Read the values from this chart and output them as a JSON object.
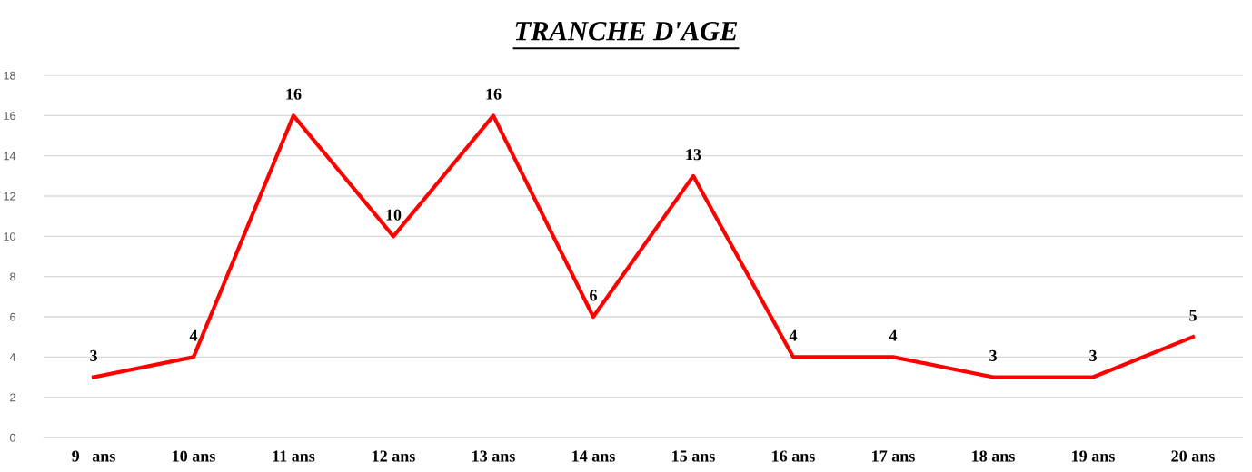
{
  "chart_data": {
    "type": "line",
    "title": "TRANCHE D'AGE",
    "categories": [
      "9   ans",
      "10 ans",
      "11 ans",
      "12 ans",
      "13 ans",
      "14 ans",
      "15 ans",
      "16 ans",
      "17 ans",
      "18 ans",
      "19 ans",
      "20 ans"
    ],
    "series": [
      {
        "color": "#ff0000",
        "values": [
          3,
          4,
          16,
          10,
          16,
          6,
          13,
          4,
          4,
          3,
          3,
          5
        ]
      }
    ],
    "ylim": [
      0,
      18
    ],
    "yticks": [
      0,
      2,
      4,
      6,
      8,
      10,
      12,
      14,
      16,
      18
    ],
    "grid": "y",
    "data_labels": true,
    "marker": "none",
    "line_style": "solid",
    "legend": false
  }
}
